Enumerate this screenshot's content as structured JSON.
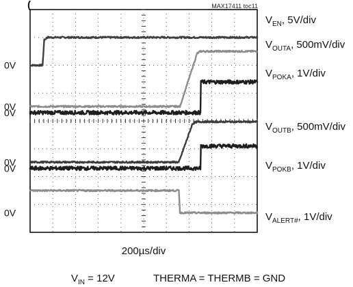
{
  "chart_data": {
    "type": "line",
    "figure_id": "MAX17411 toc11",
    "title_fragment": "(",
    "x_scale": "200µs/div",
    "conditions": {
      "vin_main": "V",
      "vin_sub": "IN",
      "vin_rest": " = 12V",
      "therm": "THERMA = THERMB = GND"
    },
    "grid": {
      "x_divisions": 10,
      "y_divisions": 8,
      "dotted": true
    },
    "traces": [
      {
        "main": "V",
        "sub": "EN",
        "rest": ", 5V/div",
        "ground_label": "0V",
        "color": "#404040",
        "gnd_div": 6.0
      },
      {
        "main": "V",
        "sub": "OUTA",
        "rest": ", 500mV/div",
        "ground_label": "0V",
        "color": "#8c8c8c",
        "gnd_div": 4.52
      },
      {
        "main": "V",
        "sub": "POKA",
        "rest": ", 1V/div",
        "ground_label": "0V",
        "color": "#1e1e1e",
        "gnd_div": 4.3
      },
      {
        "main": "V",
        "sub": "OUTB",
        "rest": ", 500mV/div",
        "ground_label": "0V",
        "color": "#3c3c3c",
        "gnd_div": 2.52
      },
      {
        "main": "V",
        "sub": "POKB",
        "rest": ", 1V/div",
        "ground_label": "0V",
        "color": "#1e1e1e",
        "gnd_div": 2.3
      },
      {
        "main": "V",
        "sub": "ALERT#",
        "rest": ", 1V/div",
        "ground_label": "0V",
        "color": "#8c8c8c",
        "gnd_div": 0.7
      }
    ],
    "waveforms": [
      {
        "name": "VEN",
        "points": [
          [
            0,
            6.0
          ],
          [
            0.55,
            6.0
          ],
          [
            0.62,
            6.9
          ],
          [
            0.75,
            7.0
          ],
          [
            10,
            7.0
          ]
        ]
      },
      {
        "name": "VOUTA",
        "points": [
          [
            0,
            4.52
          ],
          [
            6.6,
            4.52
          ],
          [
            7.35,
            6.42
          ],
          [
            7.5,
            6.5
          ],
          [
            10,
            6.5
          ]
        ]
      },
      {
        "name": "VPOKA",
        "points": [
          [
            0,
            4.3
          ],
          [
            7.5,
            4.3
          ],
          [
            7.52,
            5.4
          ],
          [
            10,
            5.4
          ]
        ]
      },
      {
        "name": "VOUTB",
        "points": [
          [
            0,
            2.52
          ],
          [
            6.55,
            2.52
          ],
          [
            7.15,
            3.9
          ],
          [
            7.35,
            3.97
          ],
          [
            10,
            3.97
          ]
        ]
      },
      {
        "name": "VPOKB",
        "points": [
          [
            0,
            2.3
          ],
          [
            7.5,
            2.3
          ],
          [
            7.52,
            3.1
          ],
          [
            10,
            3.1
          ]
        ]
      },
      {
        "name": "VALERT",
        "points": [
          [
            0,
            1.5
          ],
          [
            6.55,
            1.5
          ],
          [
            6.6,
            0.7
          ],
          [
            10,
            0.7
          ]
        ]
      }
    ]
  }
}
